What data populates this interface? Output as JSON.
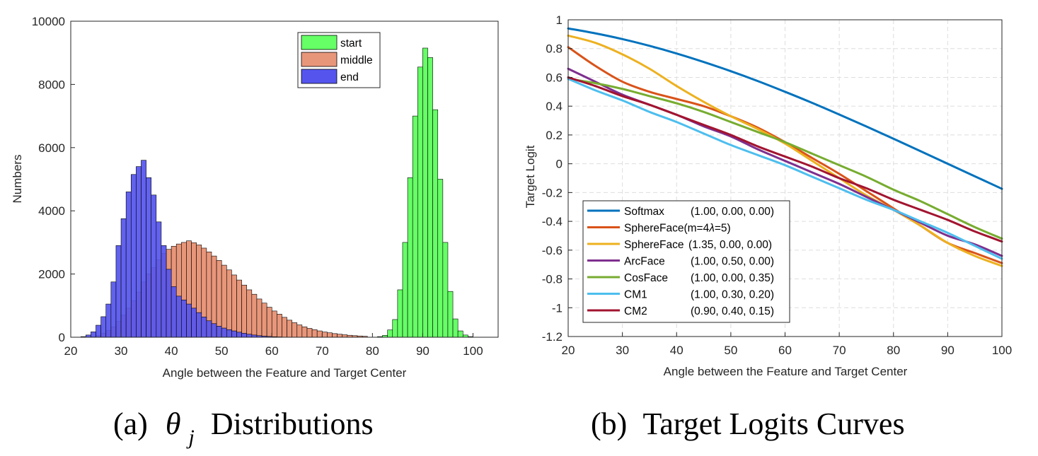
{
  "chart_data": [
    {
      "type": "bar",
      "subtype": "histogram",
      "caption_prefix": "(a)",
      "caption_symbol": "θ",
      "caption_subscript": "j",
      "caption_text": "Distributions",
      "xlabel": "Angle between the Feature and Target Center",
      "ylabel": "Numbers",
      "xlim": [
        20,
        105
      ],
      "ylim": [
        0,
        10000
      ],
      "xticks": [
        20,
        30,
        40,
        50,
        60,
        70,
        80,
        90,
        100
      ],
      "yticks": [
        0,
        2000,
        4000,
        6000,
        8000,
        10000
      ],
      "grid": false,
      "legend_position": "top-center",
      "bin_width": 1,
      "series": [
        {
          "name": "start",
          "color": "#66ff66",
          "bin_start": 81,
          "values": [
            20,
            60,
            230,
            560,
            1500,
            3000,
            5050,
            7000,
            8550,
            9150,
            8850,
            7200,
            5000,
            3000,
            1450,
            580,
            200,
            70,
            20
          ]
        },
        {
          "name": "middle",
          "color": "#e8967a",
          "bin_start": 24,
          "values": [
            15,
            60,
            130,
            210,
            330,
            500,
            700,
            920,
            1150,
            1430,
            1750,
            2000,
            2200,
            2450,
            2650,
            2780,
            2880,
            2950,
            3000,
            3050,
            2990,
            2920,
            2820,
            2700,
            2570,
            2430,
            2280,
            2130,
            1970,
            1810,
            1650,
            1500,
            1360,
            1210,
            1080,
            950,
            830,
            730,
            630,
            540,
            460,
            390,
            330,
            280,
            240,
            200,
            165,
            140,
            115,
            95,
            78,
            62,
            50,
            40,
            30
          ]
        },
        {
          "name": "end",
          "color": "#5555ee",
          "bin_start": 22,
          "values": [
            20,
            70,
            170,
            380,
            650,
            1050,
            1750,
            2900,
            3750,
            4600,
            5150,
            5400,
            5600,
            5050,
            4500,
            3650,
            2900,
            2150,
            1600,
            1300,
            1180,
            1050,
            920,
            780,
            640,
            520,
            430,
            350,
            290,
            240,
            200,
            160,
            125,
            95,
            70,
            50,
            35,
            25,
            15,
            10
          ]
        }
      ]
    },
    {
      "type": "line",
      "caption_prefix": "(b)",
      "caption_text": "Target Logits Curves",
      "xlabel": "Angle between the Feature and Target Center",
      "ylabel": "Target Logit",
      "xlim": [
        20,
        100
      ],
      "ylim": [
        -1.2,
        1
      ],
      "xticks": [
        20,
        30,
        40,
        50,
        60,
        70,
        80,
        90,
        100
      ],
      "yticks": [
        -1.2,
        -1,
        -0.8,
        -0.6,
        -0.4,
        -0.2,
        0,
        0.2,
        0.4,
        0.6,
        0.8,
        1
      ],
      "grid": true,
      "legend_position": "bottom-left",
      "x": [
        20,
        25,
        30,
        35,
        40,
        45,
        50,
        55,
        60,
        65,
        70,
        75,
        80,
        85,
        90,
        95,
        100
      ],
      "series": [
        {
          "name": "Softmax",
          "params": "(1.00, 0.00, 0.00)",
          "color": "#0072bd",
          "values": [
            0.94,
            0.906,
            0.866,
            0.819,
            0.766,
            0.707,
            0.643,
            0.574,
            0.5,
            0.423,
            0.342,
            0.259,
            0.174,
            0.087,
            0.0,
            -0.087,
            -0.174
          ]
        },
        {
          "name": "SphereFace(m=4",
          "lambda_symbol": "λ",
          "name_suffix": "=5)",
          "params": "",
          "color": "#d95319",
          "values": [
            0.81,
            0.68,
            0.57,
            0.5,
            0.45,
            0.4,
            0.33,
            0.25,
            0.15,
            0.04,
            -0.07,
            -0.19,
            -0.31,
            -0.43,
            -0.55,
            -0.62,
            -0.69
          ]
        },
        {
          "name": "SphereFace",
          "params": "(1.35, 0.00, 0.00)",
          "color": "#edb120",
          "values": [
            0.89,
            0.84,
            0.76,
            0.66,
            0.54,
            0.43,
            0.33,
            0.24,
            0.14,
            0.02,
            -0.1,
            -0.22,
            -0.32,
            -0.43,
            -0.55,
            -0.64,
            -0.71
          ]
        },
        {
          "name": "ArcFace",
          "params": "(1.00, 0.50, 0.00)",
          "color": "#7e2f8e",
          "values": [
            0.66,
            0.57,
            0.48,
            0.41,
            0.34,
            0.26,
            0.19,
            0.1,
            0.02,
            -0.06,
            -0.14,
            -0.23,
            -0.32,
            -0.41,
            -0.5,
            -0.56,
            -0.64
          ]
        },
        {
          "name": "CosFace",
          "params": "(1.00, 0.00, 0.35)",
          "color": "#77ac30",
          "values": [
            0.59,
            0.56,
            0.52,
            0.47,
            0.42,
            0.36,
            0.29,
            0.22,
            0.15,
            0.07,
            -0.01,
            -0.09,
            -0.18,
            -0.26,
            -0.35,
            -0.44,
            -0.52
          ]
        },
        {
          "name": "CM1",
          "params": "(1.00, 0.30, 0.20)",
          "color": "#4dbeee",
          "values": [
            0.59,
            0.51,
            0.44,
            0.36,
            0.29,
            0.21,
            0.13,
            0.06,
            -0.01,
            -0.09,
            -0.17,
            -0.25,
            -0.32,
            -0.4,
            -0.48,
            -0.57,
            -0.66
          ]
        },
        {
          "name": "CM2",
          "params": "(0.90, 0.40, 0.15)",
          "color": "#a2142f",
          "values": [
            0.6,
            0.54,
            0.47,
            0.41,
            0.34,
            0.27,
            0.2,
            0.12,
            0.05,
            -0.02,
            -0.1,
            -0.17,
            -0.25,
            -0.32,
            -0.39,
            -0.47,
            -0.54
          ]
        }
      ]
    }
  ]
}
